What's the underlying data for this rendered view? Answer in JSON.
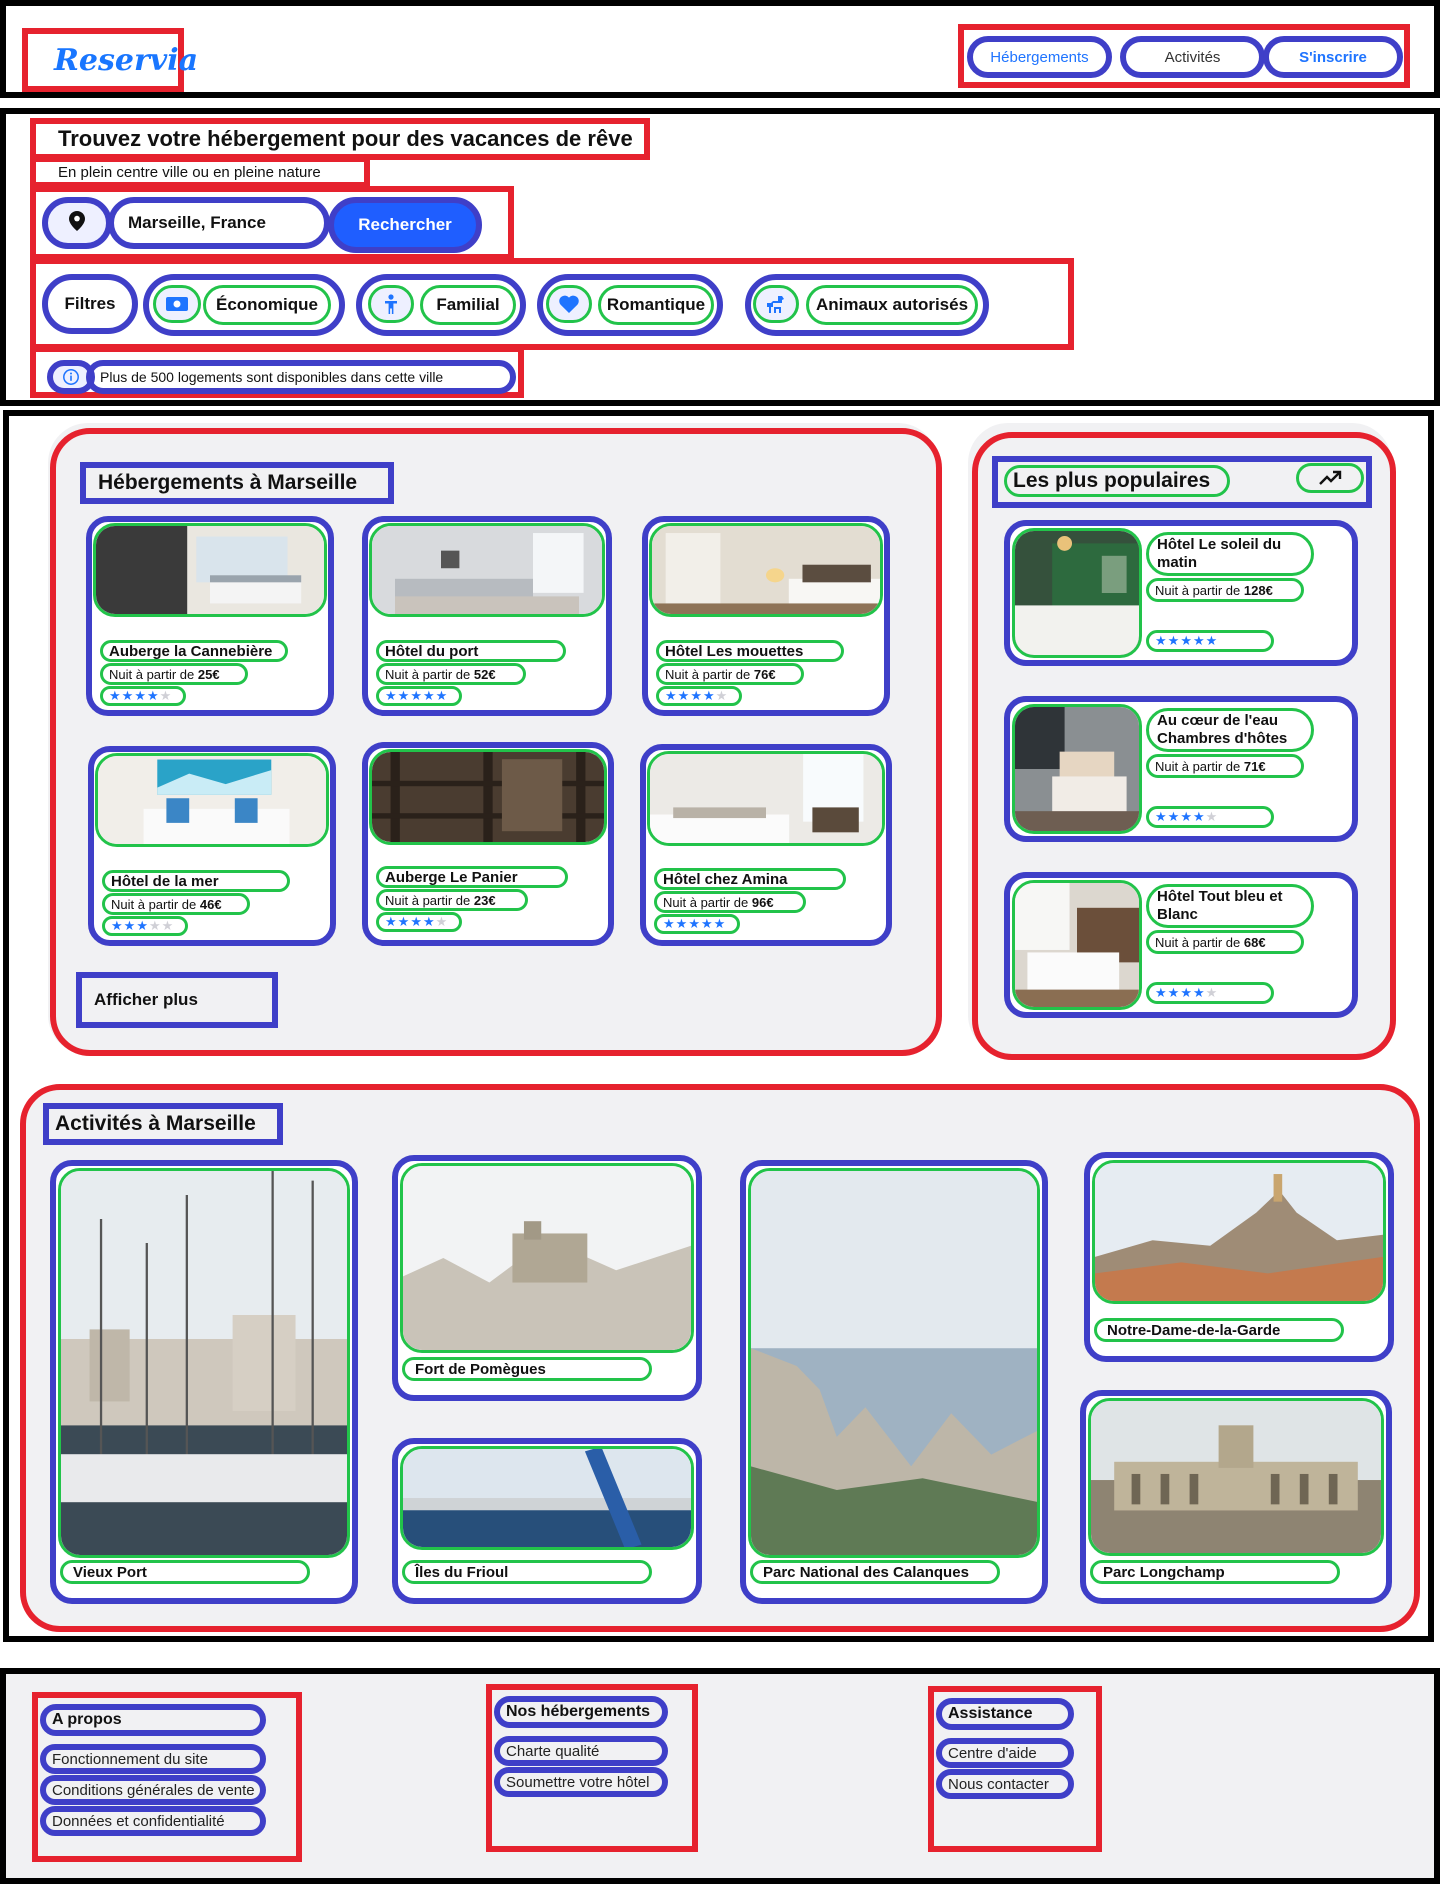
{
  "header": {
    "logo": "Reservia",
    "nav": [
      {
        "label": "Hébergements"
      },
      {
        "label": "Activités"
      },
      {
        "label": "S'inscrire"
      }
    ]
  },
  "hero": {
    "title": "Trouvez votre hébergement pour des vacances de rêve",
    "subtitle": "En plein centre ville ou en pleine nature",
    "search": {
      "value": "Marseille, France",
      "button": "Rechercher",
      "icon": "location-pin-icon"
    },
    "filters_label": "Filtres",
    "filters": [
      {
        "label": "Économique",
        "icon": "money-icon"
      },
      {
        "label": "Familial",
        "icon": "child-icon"
      },
      {
        "label": "Romantique",
        "icon": "heart-icon"
      },
      {
        "label": "Animaux autorisés",
        "icon": "dog-icon"
      }
    ],
    "info": "Plus de 500 logements sont disponibles dans cette ville"
  },
  "hebergements": {
    "title": "Hébergements à Marseille",
    "price_prefix": "Nuit à partir de",
    "cards": [
      {
        "name": "Auberge la Cannebière",
        "price": "25€",
        "stars": 4
      },
      {
        "name": "Hôtel du port",
        "price": "52€",
        "stars": 5
      },
      {
        "name": "Hôtel Les mouettes",
        "price": "76€",
        "stars": 4
      },
      {
        "name": "Hôtel de la mer",
        "price": "46€",
        "stars": 3
      },
      {
        "name": "Auberge Le Panier",
        "price": "23€",
        "stars": 4
      },
      {
        "name": "Hôtel chez Amina",
        "price": "96€",
        "stars": 5
      }
    ],
    "more": "Afficher plus"
  },
  "populaires": {
    "title": "Les plus populaires",
    "icon": "trending-up-icon",
    "cards": [
      {
        "name": "Hôtel Le soleil du matin",
        "price": "128€",
        "stars": 5
      },
      {
        "name": "Au cœur de l'eau Chambres d'hôtes",
        "price": "71€",
        "stars": 4
      },
      {
        "name": "Hôtel Tout bleu et Blanc",
        "price": "68€",
        "stars": 4
      }
    ]
  },
  "activites": {
    "title": "Activités à Marseille",
    "items": [
      {
        "name": "Vieux Port"
      },
      {
        "name": "Fort de Pomègues"
      },
      {
        "name": "Îles du Frioul"
      },
      {
        "name": "Parc National des Calanques"
      },
      {
        "name": "Notre-Dame-de-la-Garde"
      },
      {
        "name": "Parc Longchamp"
      }
    ]
  },
  "footer": {
    "columns": [
      {
        "title": "A propos",
        "links": [
          "Fonctionnement du site",
          "Conditions générales de vente",
          "Données et confidentialité"
        ]
      },
      {
        "title": "Nos hébergements",
        "links": [
          "Charte qualité",
          "Soumettre votre hôtel"
        ]
      },
      {
        "title": "Assistance",
        "links": [
          "Centre d'aide",
          "Nous contacter"
        ]
      }
    ]
  },
  "colors": {
    "accent": "#1f74ff",
    "annotation_red": "#e6222e",
    "annotation_blue": "#3f3fc8",
    "annotation_green": "#22c34a"
  }
}
